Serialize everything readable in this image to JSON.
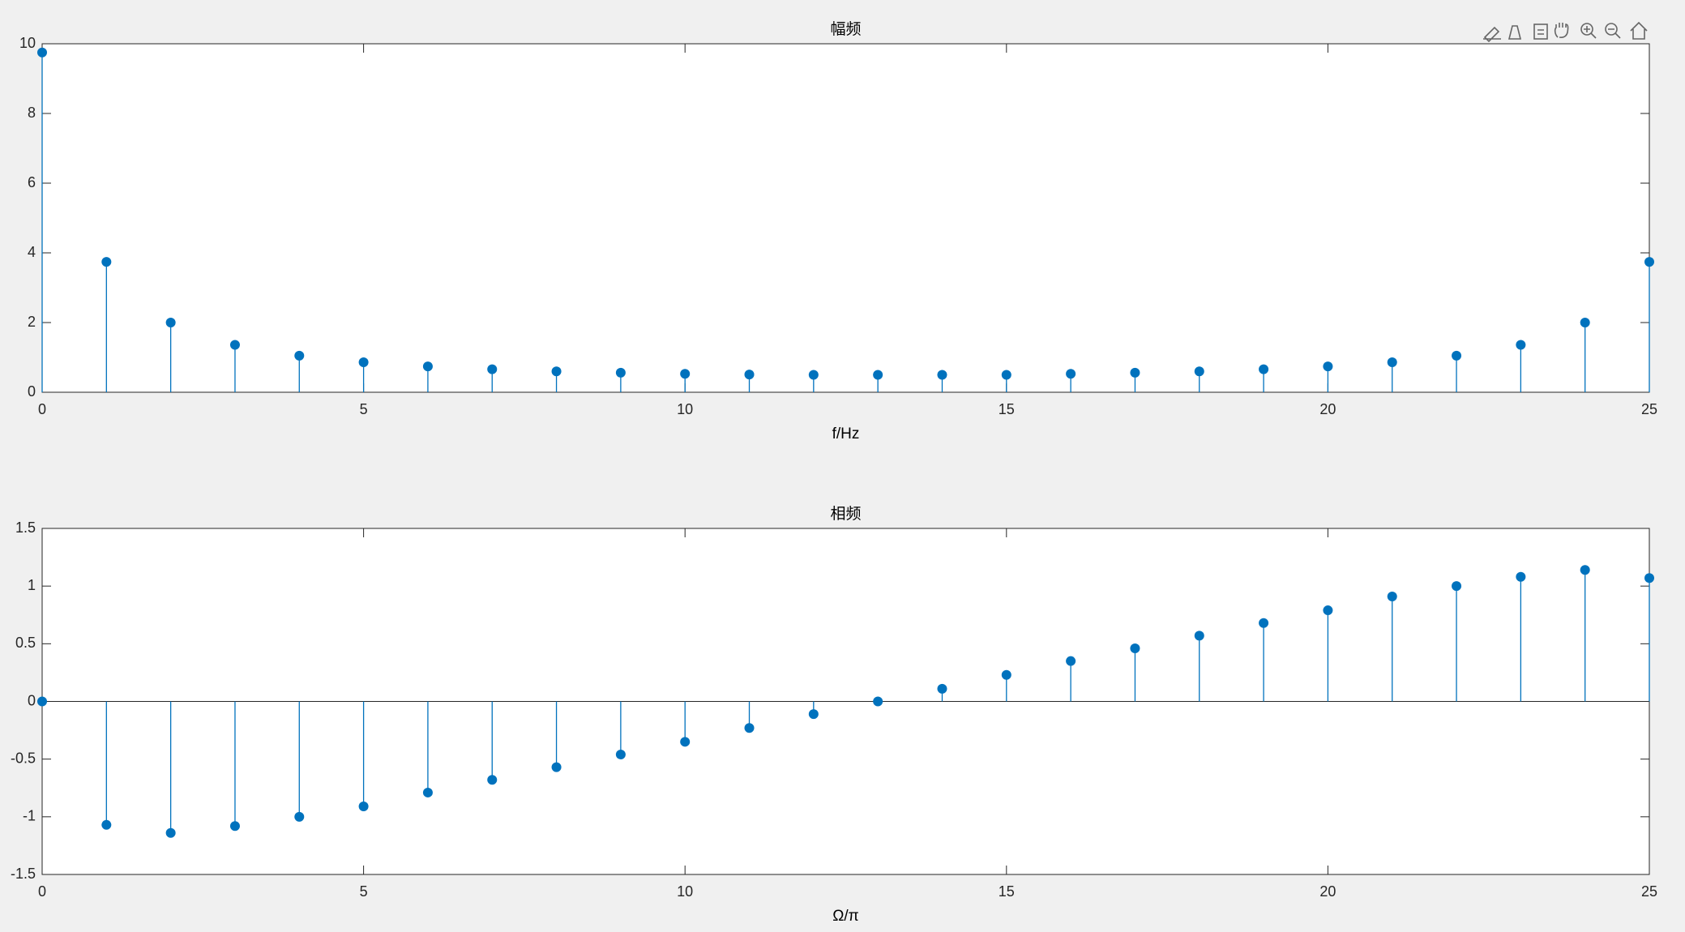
{
  "chart_data": [
    {
      "type": "stem",
      "title": "幅频",
      "xlabel": "f/Hz",
      "x": [
        0,
        1,
        2,
        3,
        4,
        5,
        6,
        7,
        8,
        9,
        10,
        11,
        12,
        13,
        14,
        15,
        16,
        17,
        18,
        19,
        20,
        21,
        22,
        23,
        24,
        25
      ],
      "values": [
        9.75,
        3.74,
        2.0,
        1.36,
        1.05,
        0.86,
        0.74,
        0.66,
        0.6,
        0.56,
        0.53,
        0.51,
        0.5,
        0.5,
        0.5,
        0.5,
        0.53,
        0.56,
        0.6,
        0.66,
        0.74,
        0.86,
        1.05,
        1.36,
        2.0,
        3.74
      ],
      "color": "#0072bd",
      "xlim": [
        0,
        25
      ],
      "xticks": [
        0,
        5,
        10,
        15,
        20,
        25
      ],
      "ylim": [
        0,
        10
      ],
      "yticks": [
        0,
        2,
        4,
        6,
        8,
        10
      ]
    },
    {
      "type": "stem",
      "title": "相频",
      "xlabel": "Ω/π",
      "x": [
        0,
        1,
        2,
        3,
        4,
        5,
        6,
        7,
        8,
        9,
        10,
        11,
        12,
        13,
        14,
        15,
        16,
        17,
        18,
        19,
        20,
        21,
        22,
        23,
        24,
        25
      ],
      "values": [
        0,
        -1.07,
        -1.14,
        -1.08,
        -1.0,
        -0.91,
        -0.79,
        -0.68,
        -0.57,
        -0.46,
        -0.35,
        -0.23,
        -0.11,
        0,
        0.11,
        0.23,
        0.35,
        0.46,
        0.57,
        0.68,
        0.79,
        0.91,
        1.0,
        1.08,
        1.14,
        1.07
      ],
      "color": "#0072bd",
      "xlim": [
        0,
        25
      ],
      "xticks": [
        0,
        5,
        10,
        15,
        20,
        25
      ],
      "ylim": [
        -1.5,
        1.5
      ],
      "yticks": [
        -1.5,
        -1,
        -0.5,
        0,
        0.5,
        1,
        1.5
      ]
    }
  ]
}
